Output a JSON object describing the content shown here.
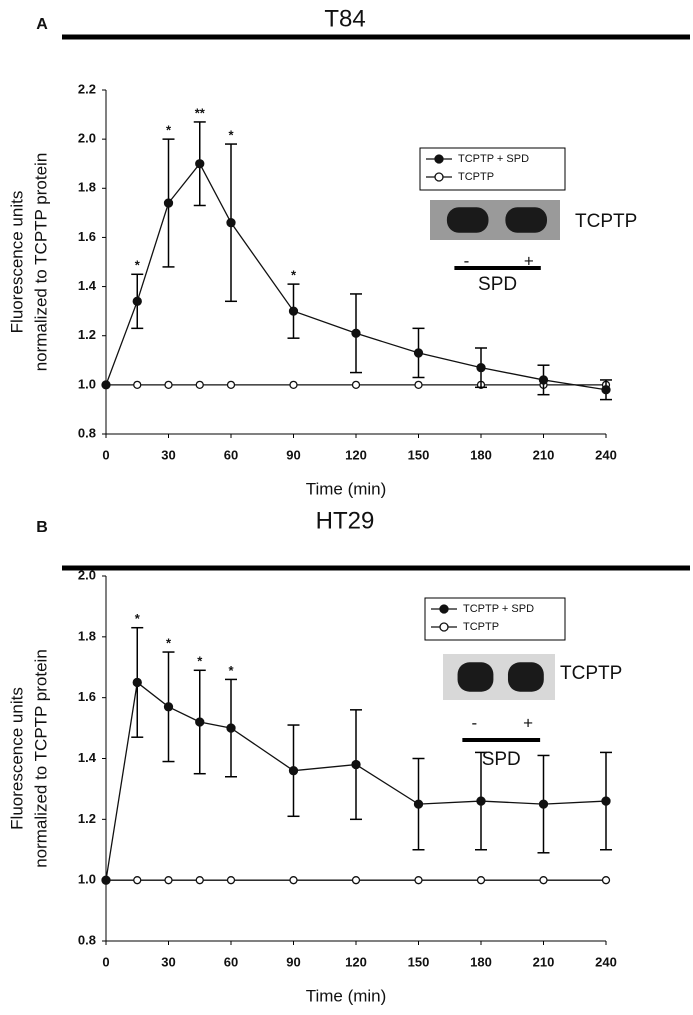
{
  "chart_data": [
    {
      "type": "line",
      "panel": "A",
      "title": "T84",
      "y_label": [
        "Fluorescence units",
        "normalized to TCPTP protein"
      ],
      "x_label": "Time (min)",
      "x": [
        0,
        15,
        30,
        45,
        60,
        90,
        120,
        150,
        180,
        210,
        240
      ],
      "xlim": [
        0,
        240
      ],
      "xticks": [
        0,
        30,
        60,
        90,
        120,
        150,
        180,
        210,
        240
      ],
      "ylim": [
        0.8,
        2.2
      ],
      "yticks": [
        0.8,
        {
          "value": 1.0,
          "label": "1.0"
        },
        1.2,
        1.4,
        1.6,
        1.8,
        {
          "value": 2.0,
          "label": "2.0"
        },
        2.2
      ],
      "series": [
        {
          "name": "TCPTP + SPD",
          "color": "#111111",
          "filled": true,
          "values": [
            1.0,
            1.34,
            1.74,
            1.9,
            1.66,
            1.3,
            1.21,
            1.13,
            1.07,
            1.02,
            0.98
          ],
          "errors": [
            0,
            0.11,
            0.26,
            0.17,
            0.32,
            0.11,
            0.16,
            0.1,
            0.08,
            0.06,
            0.04
          ]
        },
        {
          "name": "TCPTP",
          "color": "#111111",
          "filled": false,
          "values": [
            1.0,
            1.0,
            1.0,
            1.0,
            1.0,
            1.0,
            1.0,
            1.0,
            1.0,
            1.0,
            1.0
          ]
        }
      ],
      "annotations": [
        {
          "x": 15,
          "label": "*"
        },
        {
          "x": 30,
          "label": "*"
        },
        {
          "x": 45,
          "label": "**"
        },
        {
          "x": 60,
          "label": "*"
        },
        {
          "x": 90,
          "label": "*"
        }
      ],
      "inset": {
        "blot_label": "TCPTP",
        "minus": "-",
        "plus": "+",
        "treatment": "SPD"
      }
    },
    {
      "type": "line",
      "panel": "B",
      "title": "HT29",
      "y_label": [
        "Fluorescence units",
        "normalized to TCPTP protein"
      ],
      "x_label": "Time (min)",
      "x": [
        0,
        15,
        30,
        45,
        60,
        90,
        120,
        150,
        180,
        210,
        240
      ],
      "xlim": [
        0,
        240
      ],
      "xticks": [
        0,
        30,
        60,
        90,
        120,
        150,
        180,
        210,
        240
      ],
      "ylim": [
        0.8,
        2.0
      ],
      "yticks": [
        0.8,
        {
          "value": 1.0,
          "label": "1.0"
        },
        1.2,
        1.4,
        1.6,
        1.8,
        {
          "value": 2.0,
          "label": "2.0"
        }
      ],
      "series": [
        {
          "name": "TCPTP + SPD",
          "color": "#111111",
          "filled": true,
          "values": [
            1.0,
            1.65,
            1.57,
            1.52,
            1.5,
            1.36,
            1.38,
            1.25,
            1.26,
            1.25,
            1.26
          ],
          "errors": [
            0,
            0.18,
            0.18,
            0.17,
            0.16,
            0.15,
            0.18,
            0.15,
            0.16,
            0.16,
            0.16
          ]
        },
        {
          "name": "TCPTP",
          "color": "#111111",
          "filled": false,
          "values": [
            1.0,
            1.0,
            1.0,
            1.0,
            1.0,
            1.0,
            1.0,
            1.0,
            1.0,
            1.0,
            1.0
          ]
        }
      ],
      "annotations": [
        {
          "x": 15,
          "label": "*"
        },
        {
          "x": 30,
          "label": "*"
        },
        {
          "x": 45,
          "label": "*"
        },
        {
          "x": 60,
          "label": "*"
        }
      ],
      "inset": {
        "blot_label": "TCPTP",
        "minus": "-",
        "plus": "+",
        "treatment": "SPD"
      }
    }
  ]
}
